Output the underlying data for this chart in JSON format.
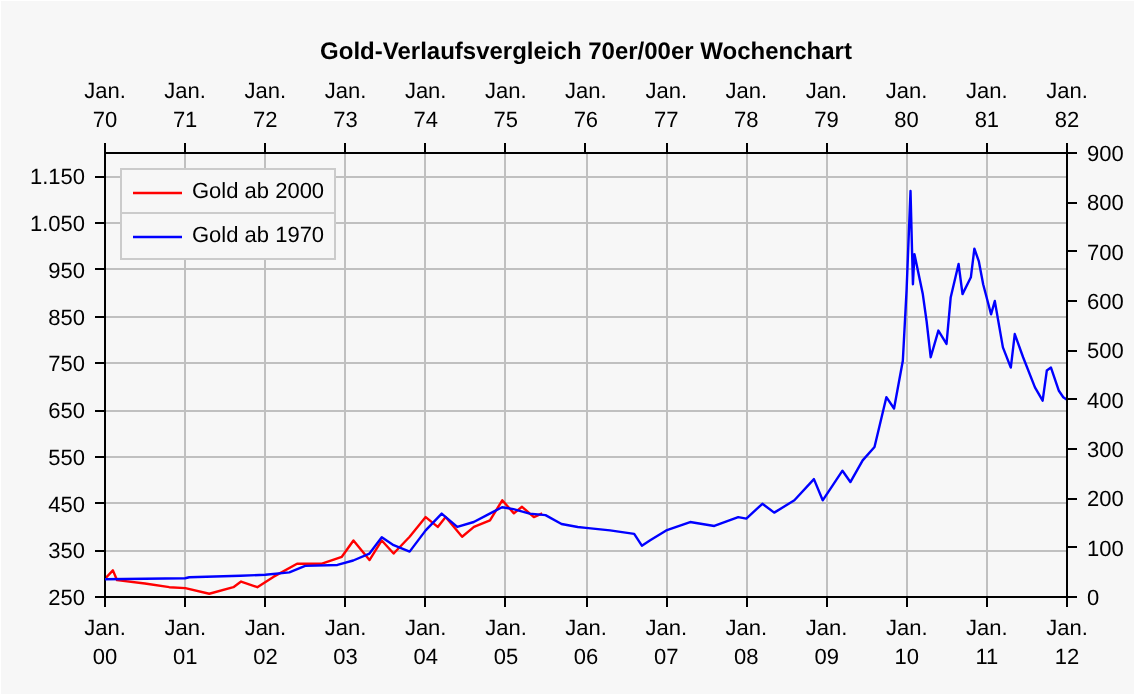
{
  "chart_data": [
    {
      "type": "line",
      "line_style": "solid",
      "xlim": [
        "2000",
        "2012"
      ],
      "xticks": [
        {
          "value": "2000",
          "label": "Jan.\n00"
        },
        {
          "value": "2001",
          "label": "Jan.\n01"
        },
        {
          "value": "2002",
          "label": "Jan.\n02"
        },
        {
          "value": "2003",
          "label": "Jan.\n03"
        },
        {
          "value": "2004",
          "label": "Jan.\n04"
        },
        {
          "value": "2005",
          "label": "Jan.\n05"
        },
        {
          "value": "2006",
          "label": "Jan.\n06"
        },
        {
          "value": "2007",
          "label": "Jan.\n07"
        },
        {
          "value": "2008",
          "label": "Jan.\n08"
        },
        {
          "value": "2009",
          "label": "Jan.\n09"
        },
        {
          "value": "2010",
          "label": "Jan.\n10"
        },
        {
          "value": "2011",
          "label": "Jan.\n11"
        },
        {
          "value": "2012",
          "label": "Jan.\n12"
        }
      ],
      "ylim": [
        250,
        1200
      ],
      "yticks": [
        250,
        350,
        450,
        550,
        650,
        750,
        850,
        950,
        {
          "value": 1050,
          "label": "1.050"
        },
        {
          "value": 1150,
          "label": "1.150"
        }
      ],
      "grid": true,
      "legend": "top left",
      "series": [
        {
          "name": "Gold ab 2000",
          "color": "#ff0000",
          "x": [
            "2000-01-01",
            "2000-02-06",
            "2000-02-25",
            "2000-07-01",
            "2000-10-20",
            "2001-01-01",
            "2001-04-20",
            "2001-08-08",
            "2001-09-12",
            "2001-11-25",
            "2002-02-06",
            "2002-05-25",
            "2002-09-12",
            "2002-12-15",
            "2003-02-06",
            "2003-04-20",
            "2003-06-15",
            "2003-08-08",
            "2003-10-20",
            "2004-01-01",
            "2004-02-25",
            "2004-04-01",
            "2004-06-15",
            "2004-08-08",
            "2004-10-20",
            "2004-12-15",
            "2005-02-06",
            "2005-03-15",
            "2005-05-08",
            "2005-06-15"
          ],
          "values": [
            289,
            307,
            286,
            279,
            271,
            269,
            257,
            271,
            283,
            271,
            293,
            321,
            321,
            336,
            371,
            329,
            371,
            343,
            379,
            421,
            400,
            421,
            379,
            400,
            414,
            457,
            429,
            443,
            421,
            429
          ]
        }
      ]
    },
    {
      "type": "line",
      "line_style": "solid",
      "title": "Gold-Verlaufsvergleich 70er/00er Wochenchart",
      "xlim": [
        "1970",
        "1982"
      ],
      "xticks": [
        {
          "value": "1970",
          "label": "Jan.\n70"
        },
        {
          "value": "1971",
          "label": "Jan.\n71"
        },
        {
          "value": "1972",
          "label": "Jan.\n72"
        },
        {
          "value": "1973",
          "label": "Jan.\n73"
        },
        {
          "value": "1974",
          "label": "Jan.\n74"
        },
        {
          "value": "1975",
          "label": "Jan.\n75"
        },
        {
          "value": "1976",
          "label": "Jan.\n76"
        },
        {
          "value": "1977",
          "label": "Jan.\n77"
        },
        {
          "value": "1978",
          "label": "Jan.\n78"
        },
        {
          "value": "1979",
          "label": "Jan.\n79"
        },
        {
          "value": "1980",
          "label": "Jan.\n80"
        },
        {
          "value": "1981",
          "label": "Jan.\n81"
        },
        {
          "value": "1982",
          "label": "Jan.\n82"
        }
      ],
      "ylim": [
        0,
        900
      ],
      "yticks": [
        0,
        100,
        200,
        300,
        400,
        500,
        600,
        700,
        800,
        900
      ],
      "legend": "top left",
      "series": [
        {
          "name": "Gold ab 1970",
          "color": "#0000ff",
          "x": [
            "1970-01-01",
            "1971-01-01",
            "1971-01-20",
            "1971-09-10",
            "1972-01-01",
            "1972-04-20",
            "1972-07-01",
            "1972-11-25",
            "1973-02-05",
            "1973-04-20",
            "1973-06-15",
            "1973-08-08",
            "1973-10-20",
            "1974-01-01",
            "1974-03-15",
            "1974-05-25",
            "1974-08-08",
            "1974-10-20",
            "1974-12-15",
            "1975-02-05",
            "1975-04-20",
            "1975-07-01",
            "1975-09-12",
            "1975-11-25",
            "1976-01-01",
            "1976-04-20",
            "1976-08-08",
            "1976-09-12",
            "1976-10-20",
            "1977-01-01",
            "1977-04-20",
            "1977-08-08",
            "1977-11-25",
            "1978-01-01",
            "1978-03-15",
            "1978-05-08",
            "1978-08-08",
            "1978-11-05",
            "1978-12-15",
            "1979-03-15",
            "1979-04-20",
            "1979-06-15",
            "1979-08-08",
            "1979-10-01",
            "1979-11-05",
            "1979-12-15",
            "1980-01-01",
            "1980-01-19",
            "1980-01-30",
            "1980-02-06",
            "1980-03-15",
            "1980-04-01",
            "1980-04-20",
            "1980-05-25",
            "1980-07-01",
            "1980-07-20",
            "1980-08-25",
            "1980-09-12",
            "1980-10-20",
            "1980-11-05",
            "1980-11-25",
            "1980-12-15",
            "1981-01-20",
            "1981-02-06",
            "1981-03-15",
            "1981-04-20",
            "1981-05-08",
            "1981-06-15",
            "1981-08-08",
            "1981-09-12",
            "1981-10-01",
            "1981-10-20",
            "1981-11-25",
            "1981-12-15",
            "1982-01-01"
          ],
          "values": [
            36,
            38,
            40,
            43,
            45,
            50,
            63,
            65,
            74,
            88,
            121,
            105,
            92,
            135,
            169,
            142,
            152,
            169,
            182,
            178,
            169,
            166,
            148,
            142,
            140,
            135,
            128,
            104,
            115,
            135,
            152,
            144,
            162,
            159,
            189,
            171,
            196,
            239,
            196,
            256,
            233,
            277,
            304,
            405,
            382,
            479,
            621,
            823,
            634,
            695,
            614,
            560,
            486,
            540,
            513,
            607,
            675,
            614,
            648,
            706,
            681,
            634,
            573,
            600,
            506,
            465,
            533,
            486,
            425,
            398,
            459,
            465,
            418,
            405,
            400
          ]
        }
      ]
    }
  ]
}
